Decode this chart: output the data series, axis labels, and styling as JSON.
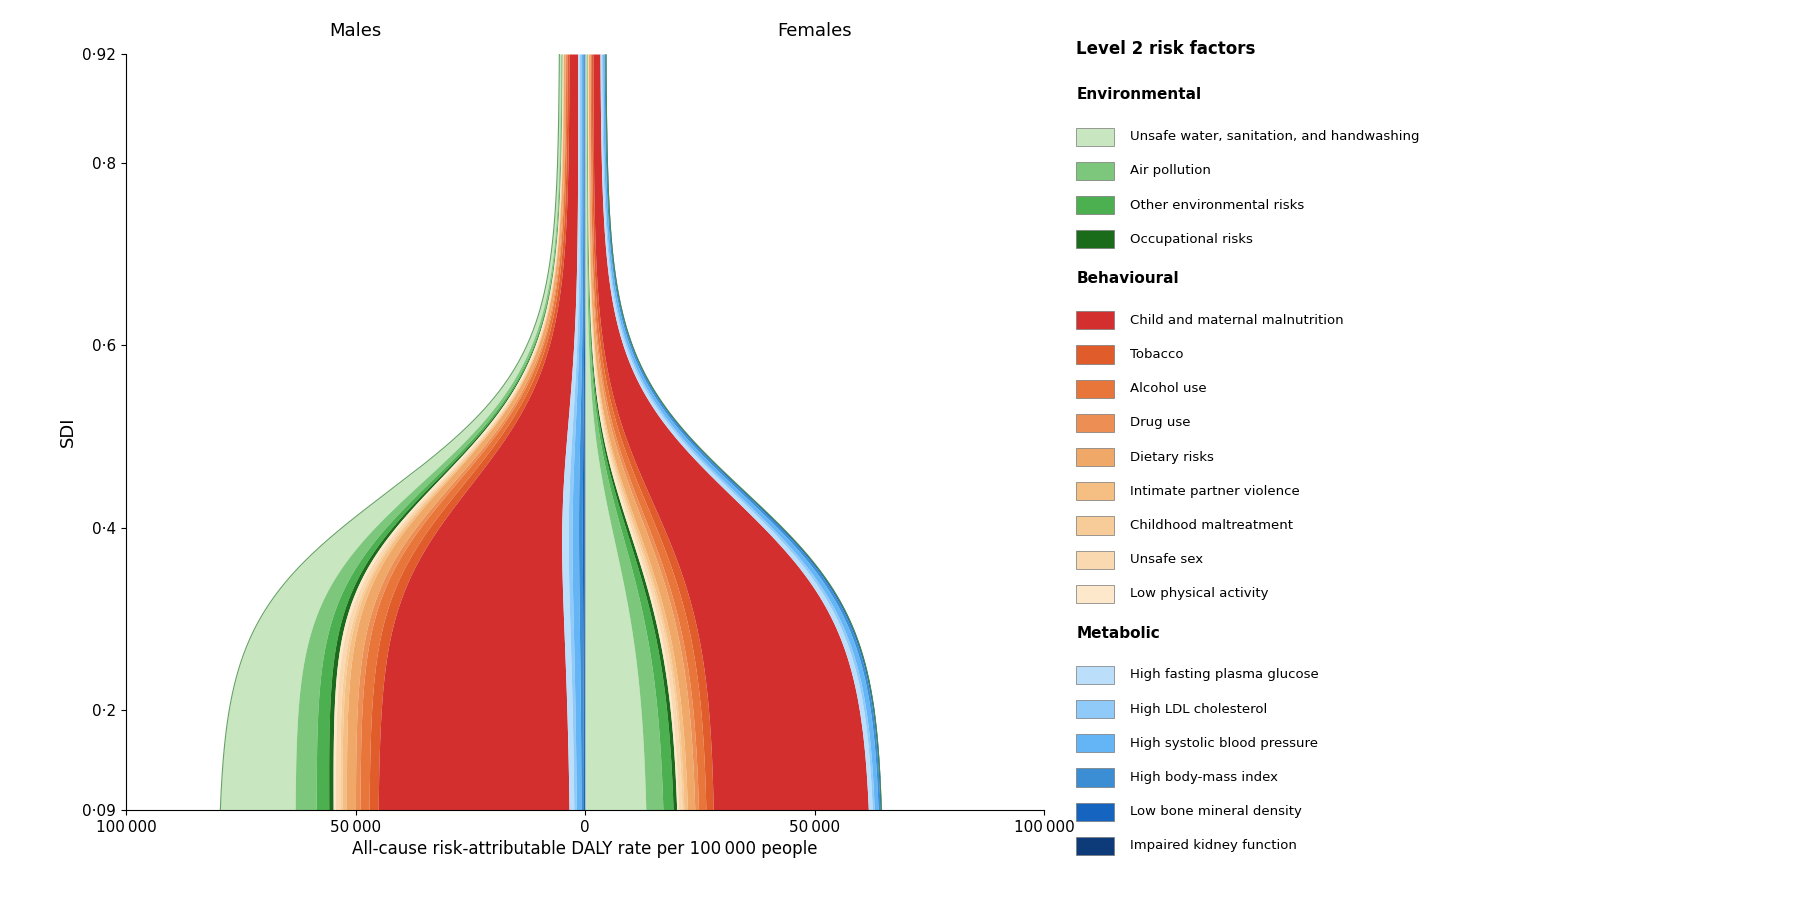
{
  "sdi_min": 0.09,
  "sdi_max": 0.92,
  "x_min": -100000,
  "x_max": 100000,
  "xlabel": "All-cause risk-attributable DALY rate per 100 000 people",
  "ylabel": "SDI",
  "males_label": "Males",
  "females_label": "Females",
  "legend_title": "Level 2 risk factors",
  "legend_sections": {
    "Environmental": [
      {
        "label": "Unsafe water, sanitation, and handwashing",
        "color": "#c8e6c0"
      },
      {
        "label": "Air pollution",
        "color": "#7dc77d"
      },
      {
        "label": "Other environmental risks",
        "color": "#4caf50"
      },
      {
        "label": "Occupational risks",
        "color": "#1a6b1a"
      }
    ],
    "Behavioural": [
      {
        "label": "Child and maternal malnutrition",
        "color": "#d32f2f"
      },
      {
        "label": "Tobacco",
        "color": "#e05c2a"
      },
      {
        "label": "Alcohol use",
        "color": "#e8753a"
      },
      {
        "label": "Drug use",
        "color": "#ed8f54"
      },
      {
        "label": "Dietary risks",
        "color": "#f0a868"
      },
      {
        "label": "Intimate partner violence",
        "color": "#f5be82"
      },
      {
        "label": "Childhood maltreatment",
        "color": "#f7cc99"
      },
      {
        "label": "Unsafe sex",
        "color": "#fad9b0"
      },
      {
        "label": "Low physical activity",
        "color": "#fde8cc"
      }
    ],
    "Metabolic": [
      {
        "label": "High fasting plasma glucose",
        "color": "#bbdefb"
      },
      {
        "label": "High LDL cholesterol",
        "color": "#90caf9"
      },
      {
        "label": "High systolic blood pressure",
        "color": "#64b5f6"
      },
      {
        "label": "High body-mass index",
        "color": "#3b8ed4"
      },
      {
        "label": "Low bone mineral density",
        "color": "#1565c0"
      },
      {
        "label": "Impaired kidney function",
        "color": "#0d3b7a"
      }
    ]
  },
  "background_color": "#ffffff"
}
